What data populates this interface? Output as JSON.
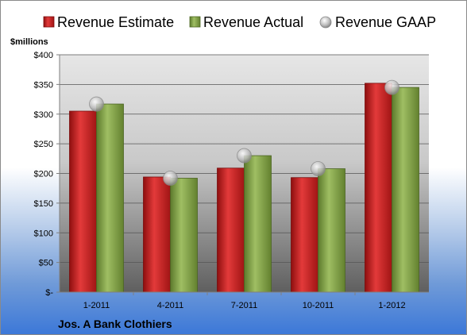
{
  "chart_data": {
    "type": "bar",
    "categories": [
      "1-2011",
      "4-2011",
      "7-2011",
      "10-2011",
      "1-2012"
    ],
    "series": [
      {
        "name": "Revenue Estimate",
        "type": "bar",
        "color": "#cc1f1f",
        "values": [
          305,
          194,
          209,
          193,
          352
        ]
      },
      {
        "name": "Revenue Actual",
        "type": "bar",
        "color": "#84a14a",
        "values": [
          317,
          192,
          230,
          208,
          345
        ]
      },
      {
        "name": "Revenue GAAP",
        "type": "marker",
        "color": "#b8b8b8",
        "values": [
          317,
          192,
          230,
          208,
          345
        ]
      }
    ],
    "ylabel": "$millions",
    "ylim": [
      0,
      400
    ],
    "yticks": [
      0,
      50,
      100,
      150,
      200,
      250,
      300,
      350,
      400
    ],
    "ytick_labels": [
      "$-",
      "$50",
      "$100",
      "$150",
      "$200",
      "$250",
      "$300",
      "$350",
      "$400"
    ],
    "grid": true,
    "legend_position": "top"
  },
  "footer": {
    "company": "Jos. A Bank Clothiers"
  }
}
